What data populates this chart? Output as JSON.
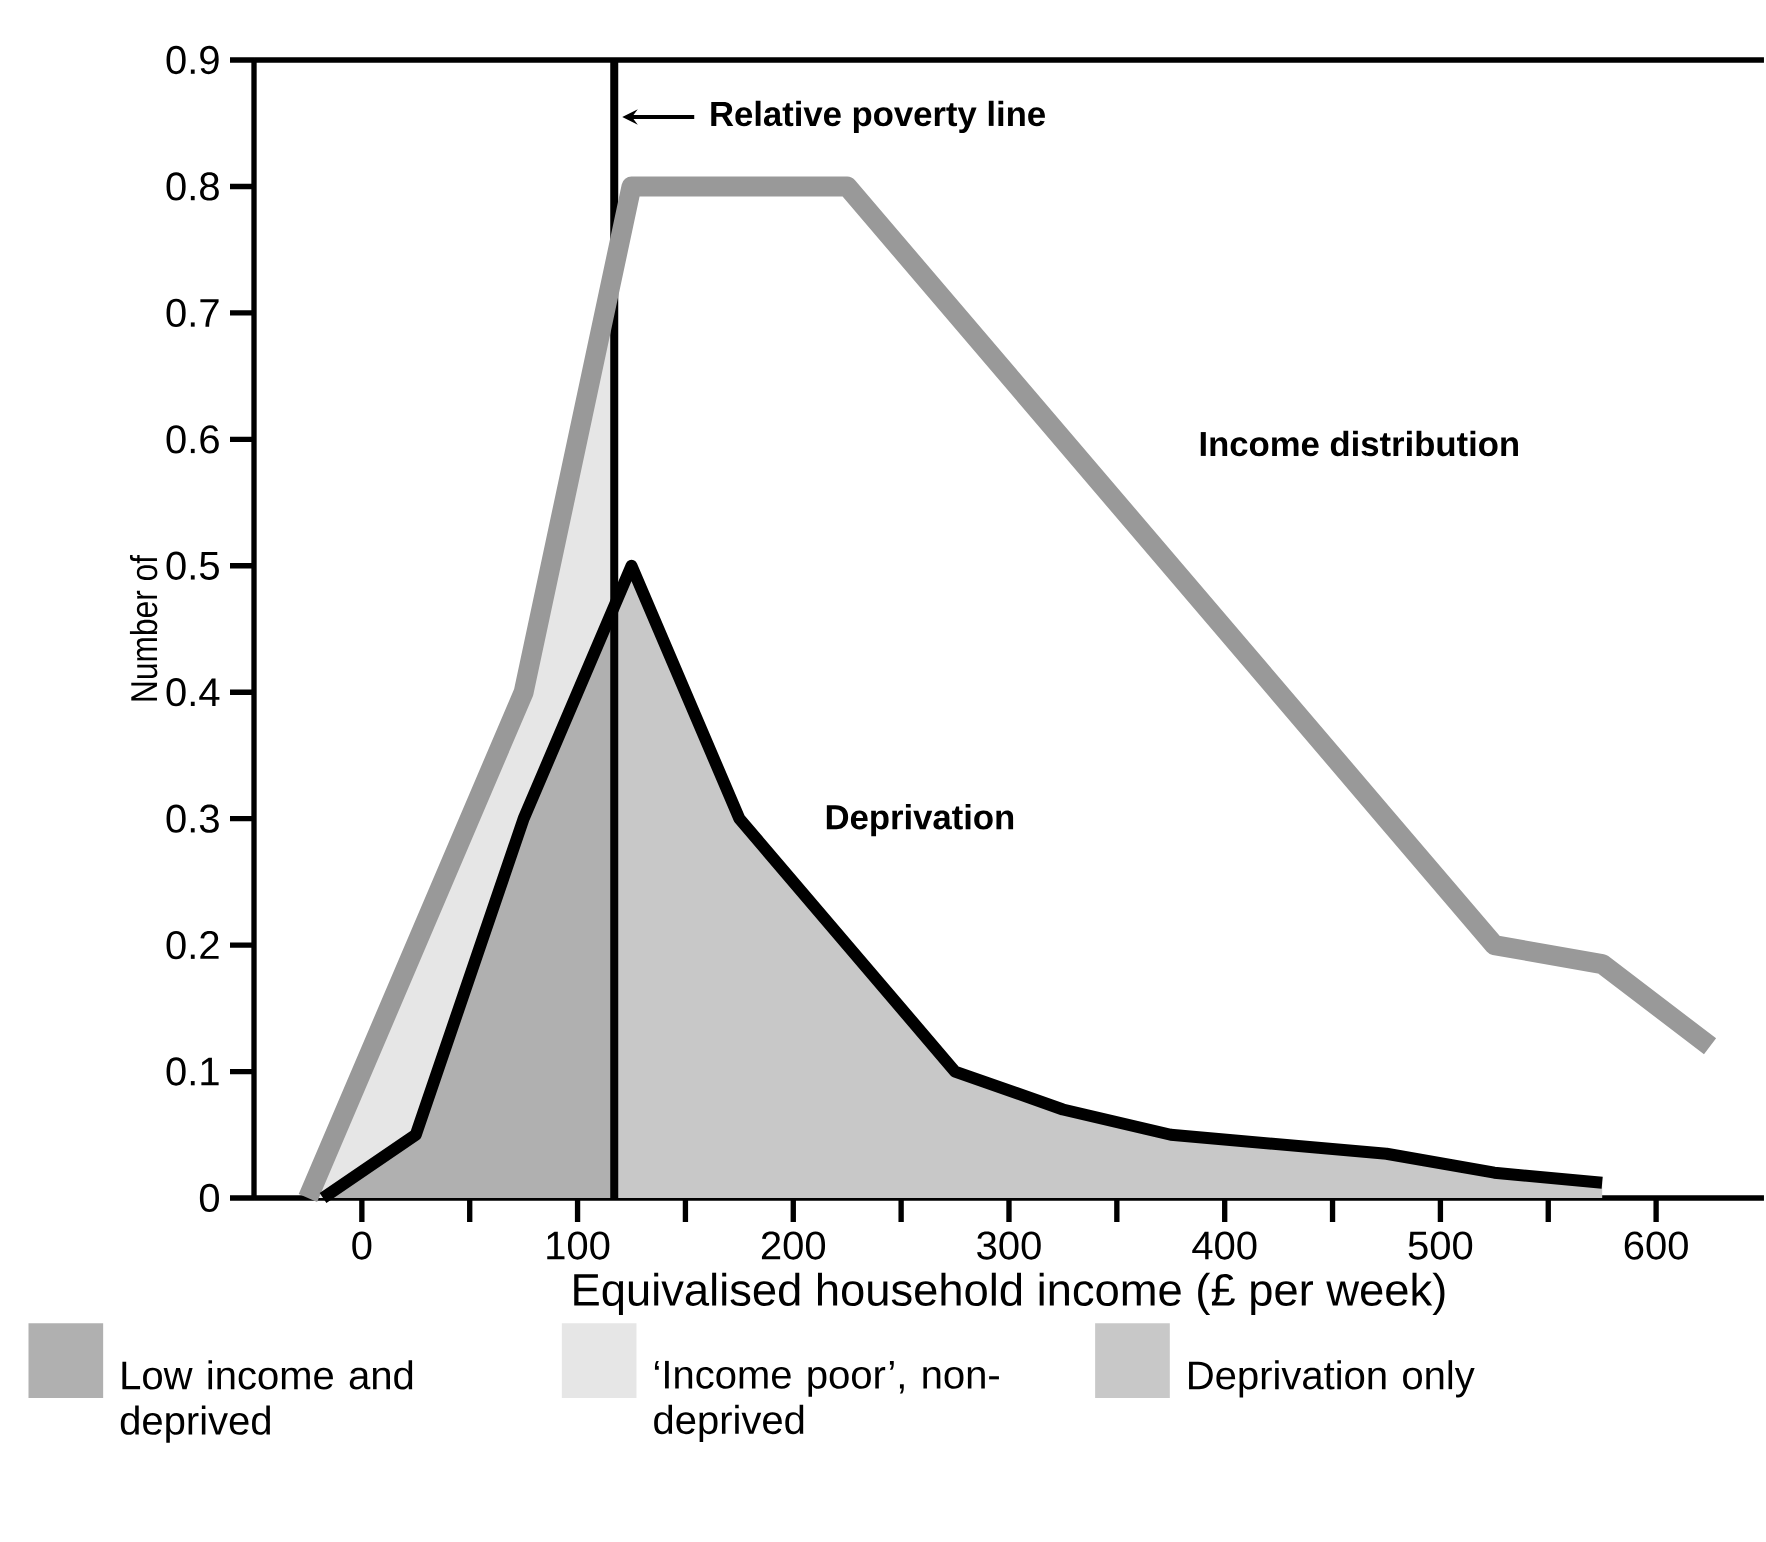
{
  "chart_data": {
    "type": "area",
    "xlabel": "Equivalised household income (£ per week)",
    "ylabel": "Number of",
    "xlim": [
      -50,
      650
    ],
    "ylim": [
      0,
      0.9
    ],
    "xticks": [
      0,
      {
        "value": 50,
        "label": null
      },
      100,
      {
        "value": 150,
        "label": null
      },
      200,
      {
        "value": 250,
        "label": null
      },
      300,
      {
        "value": 350,
        "label": null
      },
      400,
      {
        "value": 450,
        "label": null
      },
      500,
      {
        "value": 550,
        "label": null
      },
      600
    ],
    "yticks": [
      0,
      0.1,
      0.2,
      0.3,
      0.4,
      0.5,
      0.6,
      0.7,
      0.8,
      0.9
    ],
    "series": [
      {
        "name": "Low income and deprived",
        "color": "#b0b0b0",
        "x": [
          -18,
          25,
          75,
          117
        ],
        "values": [
          0,
          0.05,
          0.3,
          0.47
        ]
      },
      {
        "name": "‘Income poor’, non-deprived",
        "color": "#e6e6e6",
        "x": [
          -25,
          75,
          117
        ],
        "values": [
          0,
          0.4,
          0.74
        ]
      },
      {
        "name": "Deprivation only",
        "color": "#c8c8c8",
        "x": [
          117,
          125,
          175,
          225,
          275,
          325,
          375,
          475,
          525,
          575
        ],
        "values": [
          0.47,
          0.5,
          0.3,
          0.2,
          0.1,
          0.07,
          0.05,
          0.035,
          0.02,
          0.012
        ]
      },
      {
        "type": "line",
        "name": "Income distribution",
        "color": "#999999",
        "x": [
          -25,
          75,
          125,
          225,
          475,
          525,
          575,
          625
        ],
        "values": [
          0,
          0.4,
          0.8,
          0.8,
          0.3,
          0.2,
          0.185,
          0.12
        ]
      },
      {
        "type": "line",
        "name": "Deprivation",
        "color": "#000000",
        "x": [
          -18,
          25,
          75,
          125,
          175,
          225,
          275,
          325,
          375,
          475,
          525,
          575
        ],
        "values": [
          0,
          0.05,
          0.3,
          0.5,
          0.3,
          0.2,
          0.1,
          0.07,
          0.05,
          0.035,
          0.02,
          0.012
        ]
      }
    ],
    "ref_lines": [
      {
        "axis": "x",
        "value": 117,
        "label": "Relative poverty line",
        "color": "#000000"
      }
    ],
    "legend": "bottom",
    "grid": false,
    "marker": "none",
    "line_style": "solid"
  }
}
